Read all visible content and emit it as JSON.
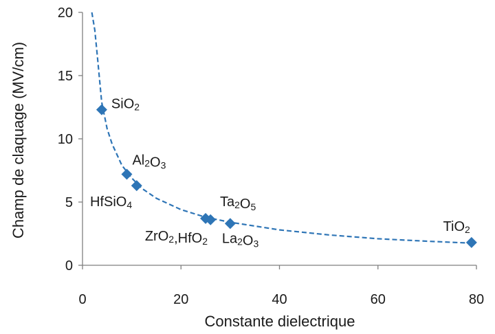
{
  "chart_data": {
    "type": "scatter",
    "xlabel": "Constante dielectrique",
    "ylabel": "Champ de claquage (MV/cm)",
    "xlim": [
      0,
      80
    ],
    "ylim": [
      0,
      20
    ],
    "xticks": [
      "0",
      "20",
      "40",
      "60",
      "80"
    ],
    "yticks": [
      "0",
      "5",
      "10",
      "15",
      "20"
    ],
    "grid": false,
    "legend": "none",
    "marker_color": "#2e75b6",
    "marker_shape": "diamond",
    "series": [
      {
        "points": [
          {
            "x": 3.9,
            "y": 12.3,
            "label": "SiO2"
          },
          {
            "x": 9,
            "y": 7.2,
            "label": "Al2O3"
          },
          {
            "x": 11,
            "y": 6.3,
            "label": "HfSiO4"
          },
          {
            "x": 25,
            "y": 3.7,
            "label": "ZrO2,HfO2"
          },
          {
            "x": 26,
            "y": 3.6,
            "label": "Ta2O5"
          },
          {
            "x": 30,
            "y": 3.3,
            "label": "La2O3"
          },
          {
            "x": 79,
            "y": 1.8,
            "label": "TiO2"
          }
        ]
      }
    ],
    "trend_line": {
      "style": "dashed",
      "color": "#2e75b6",
      "x": [
        1.9,
        2.5,
        3,
        3.9,
        5,
        6,
        8,
        10,
        12,
        15,
        20,
        25,
        30,
        40,
        50,
        60,
        70,
        79
      ],
      "y": [
        20,
        18.6,
        16.6,
        12.9,
        10.8,
        9.6,
        7.9,
        6.9,
        6.1,
        5.3,
        4.4,
        3.8,
        3.4,
        2.8,
        2.4,
        2.1,
        1.9,
        1.75
      ]
    }
  }
}
